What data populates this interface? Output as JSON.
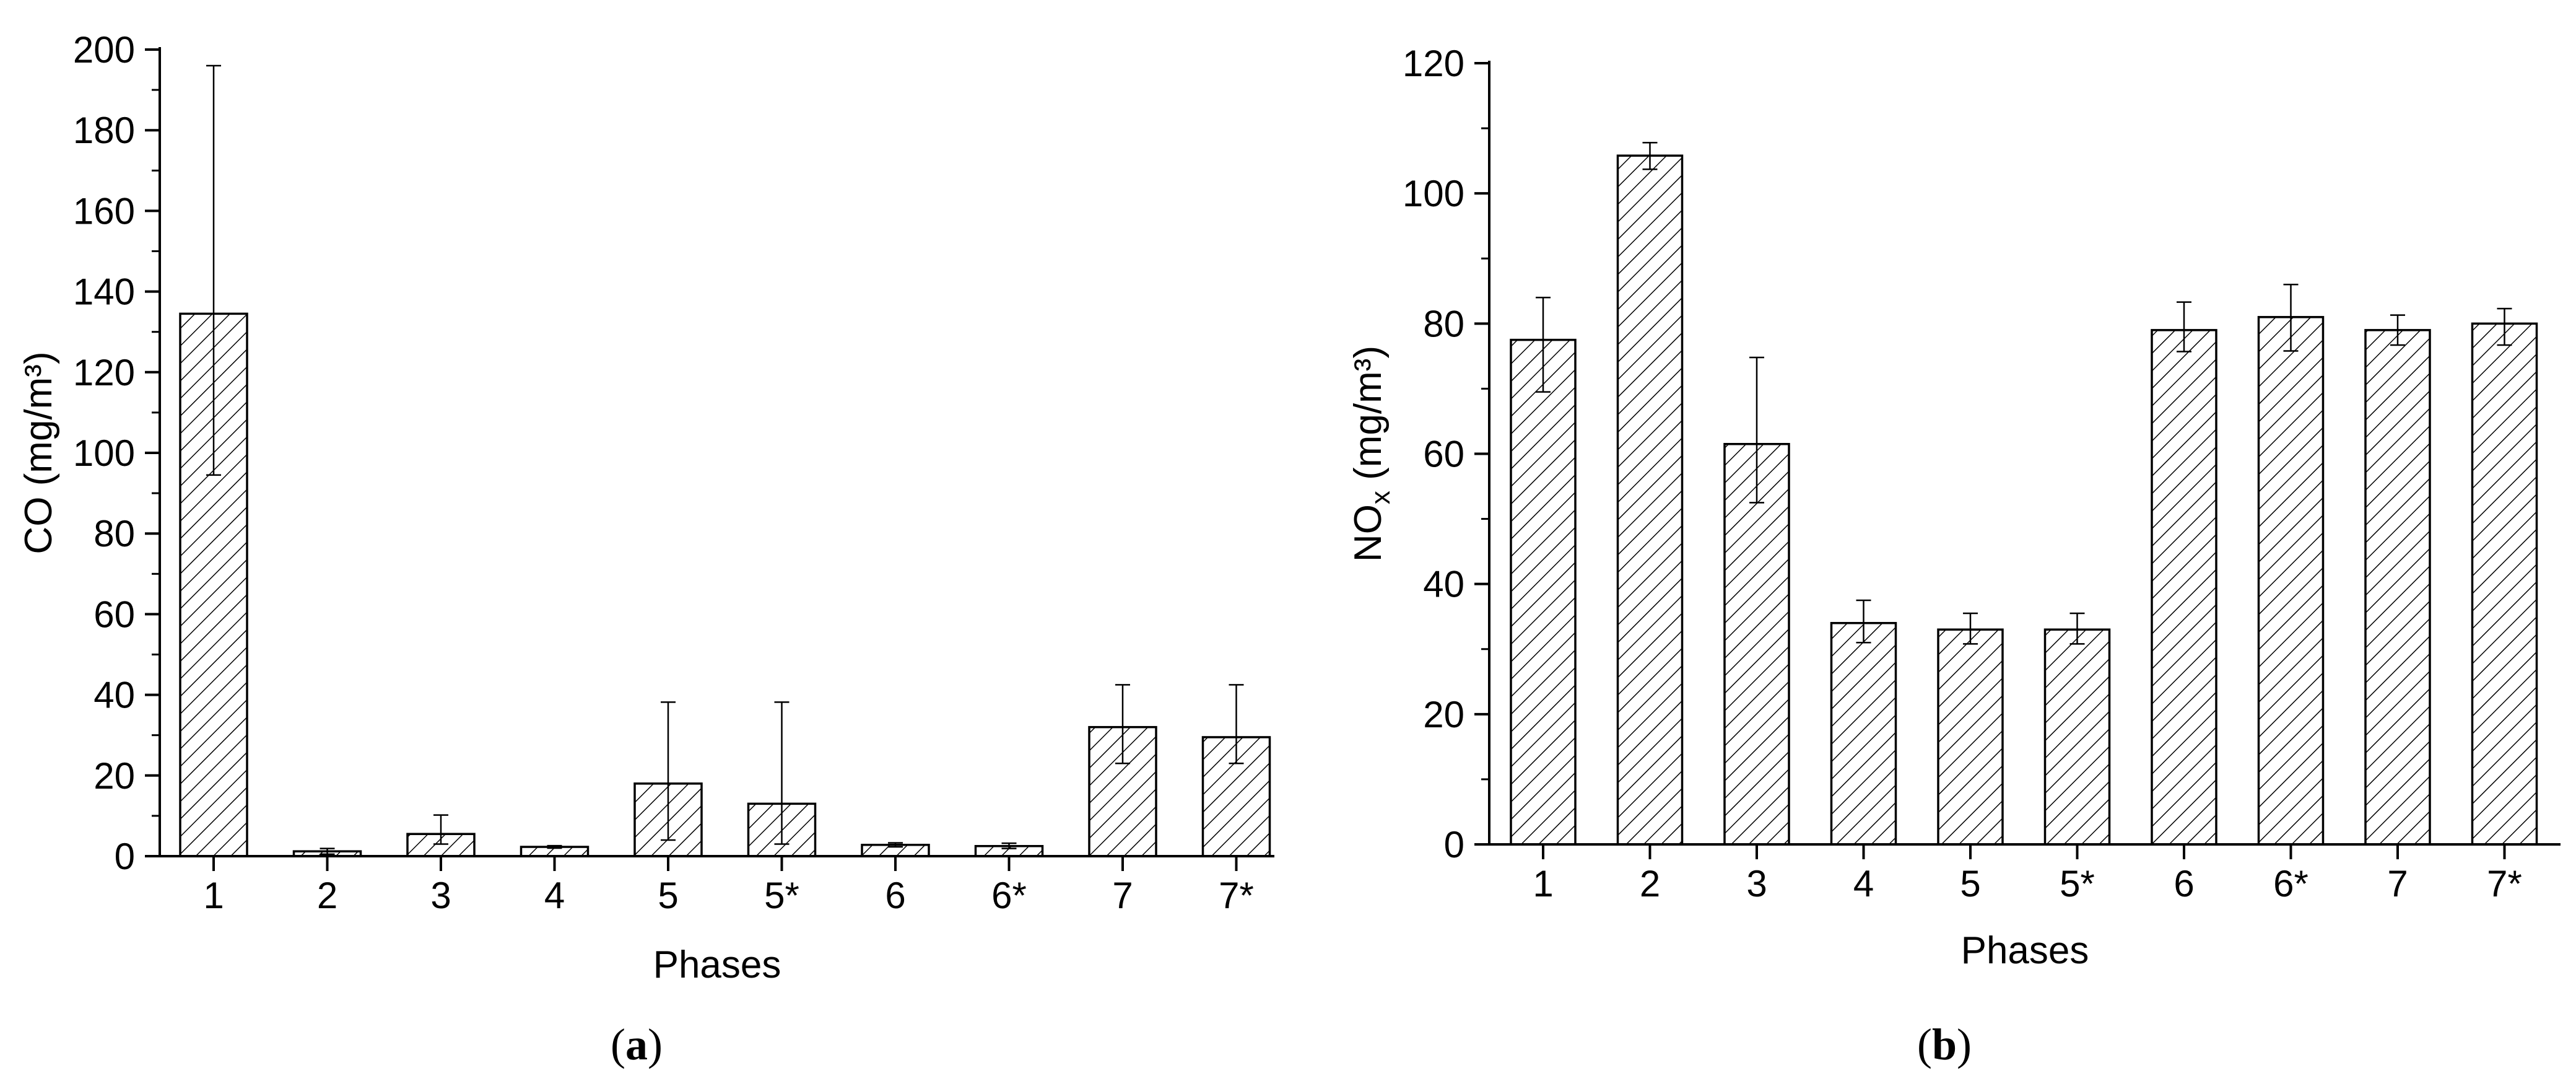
{
  "chart_data": [
    {
      "type": "bar",
      "panel_label": "(a)",
      "xlabel": "Phases",
      "ylabel": "CO (mg/m³)",
      "ylim": [
        0,
        200
      ],
      "yticks": [
        0,
        20,
        40,
        60,
        80,
        100,
        120,
        140,
        160,
        180,
        200
      ],
      "categories": [
        "1",
        "2",
        "3",
        "4",
        "5",
        "5*",
        "6",
        "6*",
        "7",
        "7*"
      ],
      "values": [
        134.5,
        1.2,
        5.5,
        2.3,
        18.0,
        13.0,
        2.8,
        2.5,
        32.0,
        29.5
      ],
      "error_low": [
        94.5,
        0.5,
        3.0,
        2.0,
        4.0,
        3.0,
        2.3,
        1.9,
        23.0,
        23.0
      ],
      "error_high": [
        196.0,
        1.9,
        10.2,
        2.6,
        38.2,
        38.2,
        3.3,
        3.2,
        42.5,
        42.5
      ],
      "fill_pattern": "diagonal-hatch",
      "grid": false
    },
    {
      "type": "bar",
      "panel_label": "(b)",
      "xlabel": "Phases",
      "ylabel_main": "NO",
      "ylabel_sub": "x",
      "ylabel_rest": " (mg/m³)",
      "ylim": [
        0,
        120
      ],
      "yticks": [
        0,
        20,
        40,
        60,
        80,
        100,
        120
      ],
      "categories": [
        "1",
        "2",
        "3",
        "4",
        "5",
        "5*",
        "6",
        "6*",
        "7",
        "7*"
      ],
      "values": [
        77.5,
        105.8,
        61.5,
        34.0,
        33.0,
        33.0,
        79.0,
        81.0,
        79.0,
        80.0
      ],
      "error_low": [
        69.5,
        103.7,
        52.5,
        31.0,
        30.8,
        30.8,
        75.7,
        75.8,
        76.7,
        76.7
      ],
      "error_high": [
        84.0,
        107.8,
        74.8,
        37.5,
        35.5,
        35.5,
        83.3,
        86.0,
        81.3,
        82.3
      ],
      "fill_pattern": "diagonal-hatch",
      "grid": false
    }
  ]
}
